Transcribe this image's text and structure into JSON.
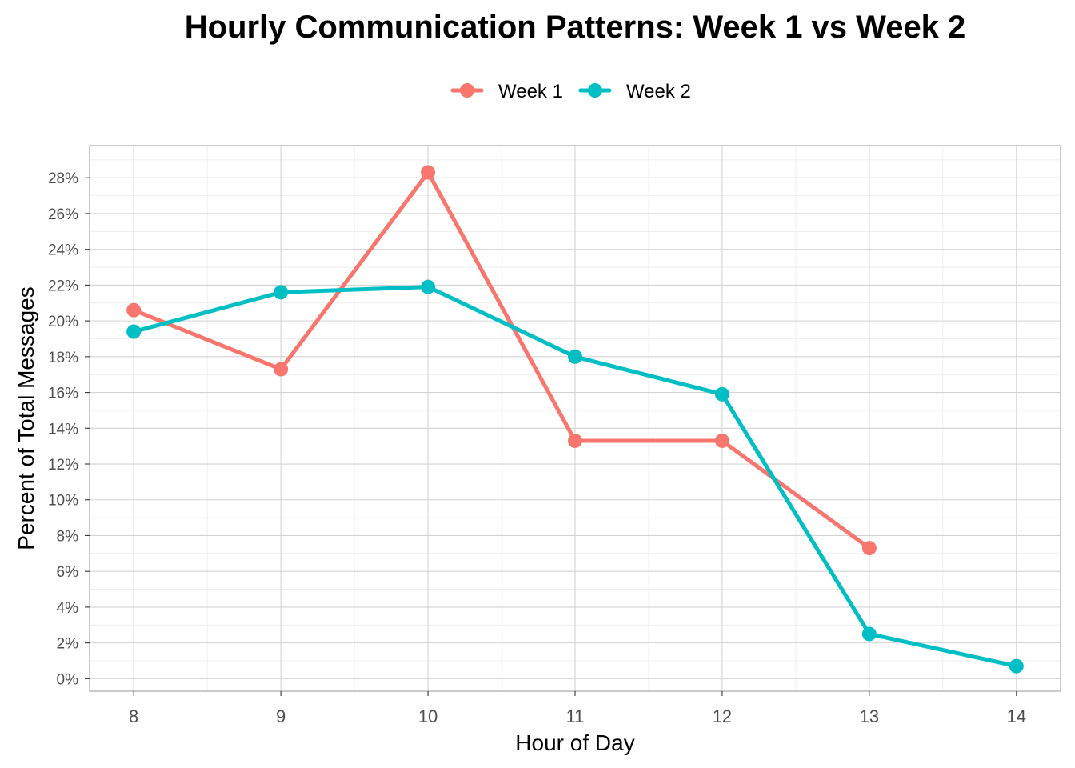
{
  "chart_data": {
    "type": "line",
    "title": "Hourly Communication Patterns: Week 1 vs Week 2",
    "xlabel": "Hour of Day",
    "ylabel": "Percent of Total Messages",
    "xlim": [
      7.7,
      14.3
    ],
    "ylim": [
      -0.7,
      29.8
    ],
    "x_ticks": [
      8,
      9,
      10,
      11,
      12,
      13,
      14
    ],
    "x_tick_labels": [
      "8",
      "9",
      "10",
      "11",
      "12",
      "13",
      "14"
    ],
    "y_ticks": [
      0,
      2,
      4,
      6,
      8,
      10,
      12,
      14,
      16,
      18,
      20,
      22,
      24,
      26,
      28
    ],
    "y_tick_labels": [
      "0%",
      "2%",
      "4%",
      "6%",
      "8%",
      "10%",
      "12%",
      "14%",
      "16%",
      "18%",
      "20%",
      "22%",
      "24%",
      "26%",
      "28%"
    ],
    "grid": true,
    "legend_position": "top",
    "series": [
      {
        "name": "Week 1",
        "color": "#F8766D",
        "x": [
          8,
          9,
          10,
          11,
          12,
          13
        ],
        "values": [
          20.6,
          17.3,
          28.3,
          13.3,
          13.3,
          7.3
        ]
      },
      {
        "name": "Week 2",
        "color": "#00BFC4",
        "x": [
          8,
          9,
          10,
          11,
          12,
          13,
          14
        ],
        "values": [
          19.4,
          21.6,
          21.9,
          18.0,
          15.9,
          2.5,
          0.7
        ]
      }
    ]
  }
}
